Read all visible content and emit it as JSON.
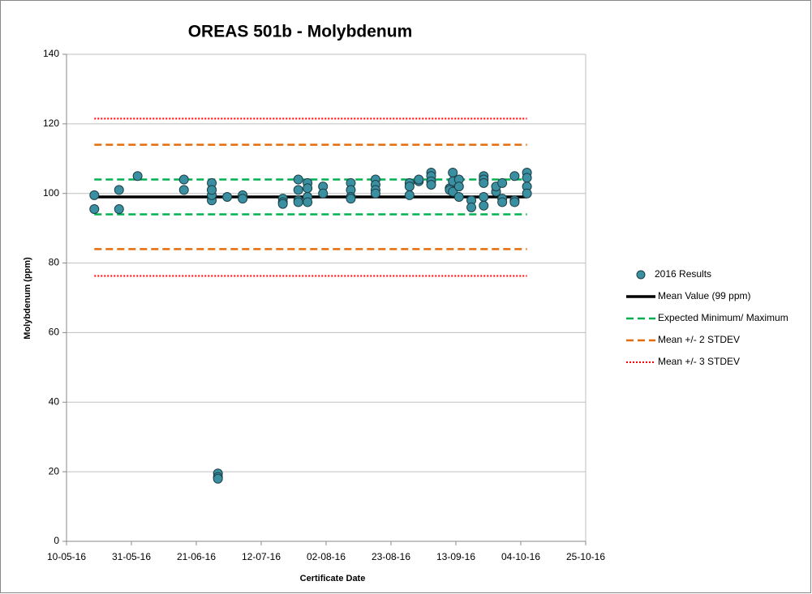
{
  "chart_data": {
    "type": "scatter",
    "title": "OREAS 501b - Molybdenum",
    "x_label": "Certificate Date",
    "y_label": "Molybdenum (ppm)",
    "xlim": [
      42500,
      42668
    ],
    "xticks": [
      {
        "value": 42500,
        "label": "10-05-16"
      },
      {
        "value": 42521,
        "label": "31-05-16"
      },
      {
        "value": 42542,
        "label": "21-06-16"
      },
      {
        "value": 42563,
        "label": "12-07-16"
      },
      {
        "value": 42584,
        "label": "02-08-16"
      },
      {
        "value": 42605,
        "label": "23-08-16"
      },
      {
        "value": 42626,
        "label": "13-09-16"
      },
      {
        "value": 42647,
        "label": "04-10-16"
      },
      {
        "value": 42668,
        "label": "25-10-16"
      }
    ],
    "ylim": [
      0,
      140
    ],
    "yticks": [
      0,
      20,
      40,
      60,
      80,
      100,
      120,
      140
    ],
    "grid": true,
    "legend": "right",
    "series": [
      {
        "name": "2016 Results",
        "type": "scatter",
        "color": "#3a8fa0",
        "x": [
          42509,
          42509,
          42517,
          42517,
          42523,
          42538,
          42538,
          42547,
          42547,
          42547,
          42547,
          42547,
          42549,
          42549,
          42549,
          42552,
          42557,
          42557,
          42570,
          42570,
          42570,
          42575,
          42575,
          42575,
          42575,
          42578,
          42578,
          42578,
          42578,
          42583,
          42583,
          42592,
          42592,
          42592,
          42592,
          42600,
          42600,
          42600,
          42600,
          42611,
          42611,
          42611,
          42614,
          42614,
          42618,
          42618,
          42618,
          42618,
          42624,
          42624,
          42625,
          42625,
          42625,
          42627,
          42627,
          42627,
          42631,
          42631,
          42635,
          42635,
          42635,
          42635,
          42635,
          42639,
          42639,
          42641,
          42641,
          42641,
          42645,
          42645,
          42645,
          42649,
          42649,
          42649,
          42649
        ],
        "values": [
          99.5,
          95.5,
          101,
          95.5,
          105,
          104,
          101,
          101,
          103,
          98,
          99.5,
          101,
          19.5,
          18.5,
          18,
          99,
          99.5,
          98.5,
          98.5,
          97.5,
          97,
          104,
          101,
          98,
          97.5,
          103,
          101.5,
          99,
          97.5,
          102,
          100,
          103,
          101,
          99,
          98.5,
          104,
          102.5,
          101,
          100,
          103,
          102,
          99.5,
          103.5,
          104,
          106,
          105,
          103.5,
          102.5,
          101.5,
          101,
          106,
          103.5,
          100.5,
          104,
          102,
          99,
          98,
          96,
          105,
          104,
          103,
          99,
          96.5,
          100.5,
          102,
          103,
          98.5,
          97.5,
          105,
          98,
          97.5,
          106,
          104.5,
          102,
          100
        ]
      },
      {
        "name": "Mean Value (99 ppm)",
        "type": "line",
        "color": "#000000",
        "dash": "solid",
        "x": [
          42509,
          42649
        ],
        "values": [
          99,
          99
        ]
      },
      {
        "name": "Expected Minimum/ Maximum",
        "type": "line",
        "color": "#00b050",
        "dash": "dashed",
        "x": [
          42509,
          42649,
          null,
          42509,
          42649
        ],
        "values": [
          104,
          104,
          null,
          94,
          94
        ]
      },
      {
        "name": "Mean +/- 2 STDEV",
        "type": "line",
        "color": "#e46c0a",
        "dash": "dashed",
        "x": [
          42509,
          42649,
          null,
          42509,
          42649
        ],
        "values": [
          114,
          114,
          null,
          84,
          84
        ]
      },
      {
        "name": "Mean +/- 3 STDEV",
        "type": "line",
        "color": "#ff0000",
        "dash": "dotted",
        "x": [
          42509,
          42649,
          null,
          42509,
          42649
        ],
        "values": [
          121.5,
          121.5,
          null,
          76.3,
          76.3
        ]
      }
    ]
  }
}
